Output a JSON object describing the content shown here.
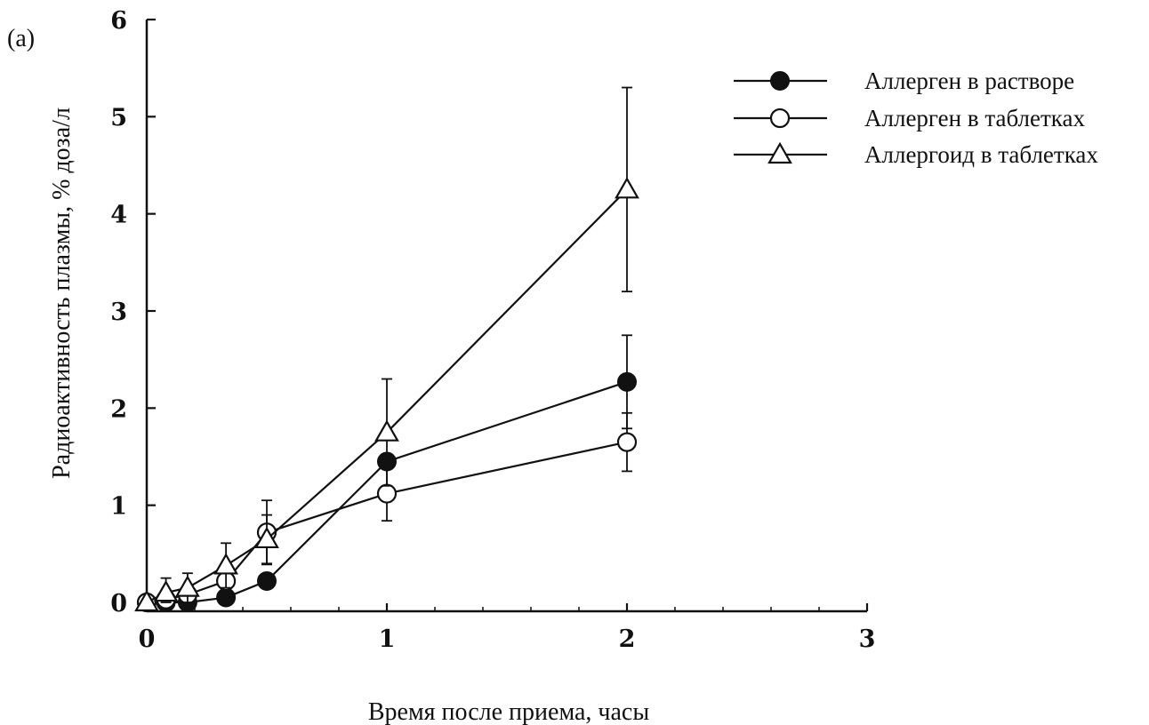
{
  "panel_label": "(a)",
  "chart_data": {
    "type": "line",
    "xlabel": "Время после приема, часы",
    "ylabel": "Радиоактивность плазмы, % доза/л",
    "xlim": [
      0,
      3
    ],
    "ylim": [
      0,
      6
    ],
    "xticks": [
      "0",
      "1",
      "2",
      "3"
    ],
    "yticks": [
      "0",
      "1",
      "2",
      "3",
      "4",
      "5",
      "6"
    ],
    "grid": false,
    "legend_position": "top-right",
    "series": [
      {
        "name": "Аллерген в растворе",
        "marker": "filled-circle",
        "x": [
          0,
          0.08,
          0.17,
          0.33,
          0.5,
          1,
          2
        ],
        "y": [
          0,
          0,
          0,
          0.05,
          0.22,
          1.45,
          2.27
        ],
        "err": [
          0,
          0,
          0,
          0,
          0,
          0,
          0.48
        ]
      },
      {
        "name": "Аллерген в таблетках",
        "marker": "open-circle",
        "x": [
          0,
          0.08,
          0.17,
          0.33,
          0.5,
          1,
          2
        ],
        "y": [
          0,
          0.03,
          0.08,
          0.22,
          0.72,
          1.12,
          1.65
        ],
        "err": [
          0,
          0,
          0,
          0.1,
          0.33,
          0.28,
          0.3
        ]
      },
      {
        "name": "Аллергоид в таблетках",
        "marker": "open-triangle",
        "x": [
          0,
          0.08,
          0.17,
          0.33,
          0.5,
          1,
          2
        ],
        "y": [
          0,
          0.1,
          0.15,
          0.38,
          0.65,
          1.75,
          4.25
        ],
        "err": [
          0,
          0.15,
          0.15,
          0.23,
          0.25,
          0.55,
          1.05
        ]
      }
    ]
  }
}
